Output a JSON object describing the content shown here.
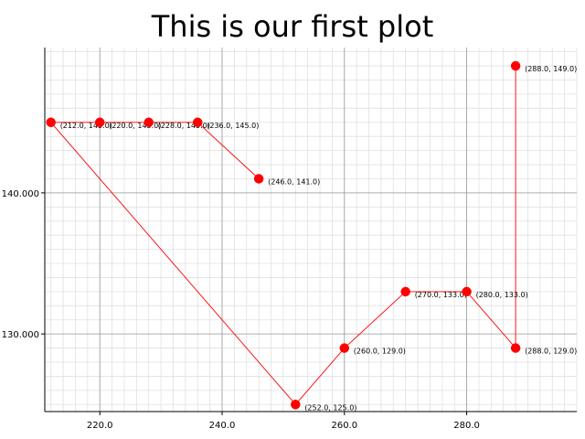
{
  "chart_data": {
    "type": "line",
    "title": "This is our first plot",
    "xlabel": "",
    "ylabel": "",
    "xlim": [
      211,
      298
    ],
    "ylim": [
      124.5,
      150.3
    ],
    "x_ticks": [
      220,
      240,
      260,
      280
    ],
    "y_ticks": [
      130,
      140
    ],
    "x_tick_labels": [
      "220.0",
      "240.0",
      "260.0",
      "280.0"
    ],
    "y_tick_labels": [
      "130.000",
      "140.000"
    ],
    "x_minor_step": 2,
    "y_minor_step": 1,
    "grid": true,
    "legend": "none",
    "series": [
      {
        "color": "#ff0000",
        "x": [
          212,
          220,
          228,
          236,
          246
        ],
        "y": [
          145,
          145,
          145,
          145,
          141
        ]
      },
      {
        "color": "#ff0000",
        "x": [
          212,
          252,
          260,
          270,
          280,
          288,
          288
        ],
        "y": [
          145,
          125,
          129,
          133,
          133,
          129,
          149
        ]
      }
    ],
    "points": [
      {
        "x": 212,
        "y": 145,
        "label": "(212.0, 145.0)"
      },
      {
        "x": 220,
        "y": 145,
        "label": "(220.0, 145.0)"
      },
      {
        "x": 228,
        "y": 145,
        "label": "(228.0, 145.0)"
      },
      {
        "x": 236,
        "y": 145,
        "label": "(236.0, 145.0)"
      },
      {
        "x": 246,
        "y": 141,
        "label": "(246.0, 141.0)"
      },
      {
        "x": 252,
        "y": 125,
        "label": "(252.0, 125.0)"
      },
      {
        "x": 260,
        "y": 129,
        "label": "(260.0, 129.0)"
      },
      {
        "x": 270,
        "y": 133,
        "label": "(270.0, 133.0)"
      },
      {
        "x": 280,
        "y": 133,
        "label": "(280.0, 133.0)"
      },
      {
        "x": 288,
        "y": 129,
        "label": "(288.0, 129.0)"
      },
      {
        "x": 288,
        "y": 149,
        "label": "(288.0, 149.0)"
      }
    ]
  }
}
